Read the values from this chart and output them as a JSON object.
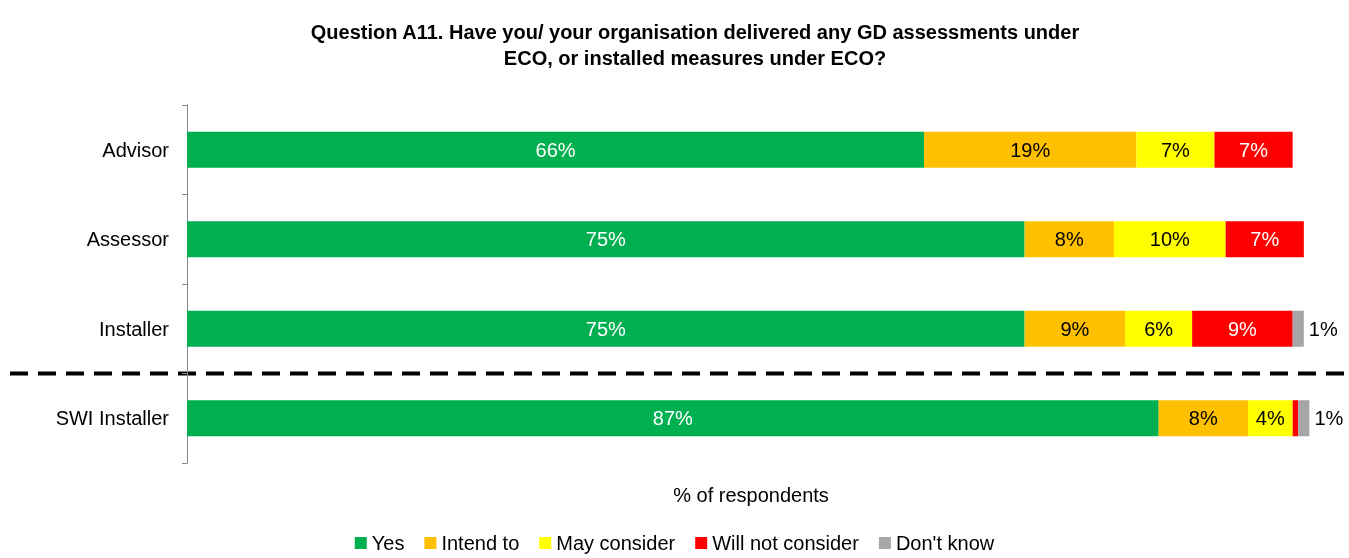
{
  "chart_data": {
    "type": "bar",
    "orientation": "horizontal",
    "stacked": true,
    "title": "Question A11. Have you/ your organisation delivered any GD assessments under\nECO, or installed measures under ECO?",
    "xlabel": "% of respondents",
    "categories": [
      "Advisor",
      "Assessor",
      "Installer",
      "SWI Installer"
    ],
    "series": [
      {
        "name": "Yes",
        "color": "#00b050",
        "values": [
          66,
          75,
          75,
          87
        ],
        "value_labels": [
          "66%",
          "75%",
          "75%",
          "87%"
        ]
      },
      {
        "name": "Intend to",
        "color": "#ffc000",
        "values": [
          19,
          8,
          9,
          8
        ],
        "value_labels": [
          "19%",
          "8%",
          "9%",
          "8%"
        ]
      },
      {
        "name": "May consider",
        "color": "#ffff00",
        "values": [
          7,
          10,
          6,
          4
        ],
        "value_labels": [
          "7%",
          "10%",
          "6%",
          "4%"
        ]
      },
      {
        "name": "Will not consider",
        "color": "#ff0000",
        "values": [
          7,
          7,
          9,
          0.5
        ],
        "value_labels": [
          "7%",
          "7%",
          "9%",
          null
        ]
      },
      {
        "name": "Don't know",
        "color": "#a6a6a6",
        "values": [
          0,
          0,
          1,
          1
        ],
        "value_labels": [
          null,
          null,
          "1%",
          "1%"
        ]
      }
    ],
    "xlim": [
      0,
      101
    ],
    "tick_labels": "y",
    "grid": false,
    "legend": "bottom"
  }
}
